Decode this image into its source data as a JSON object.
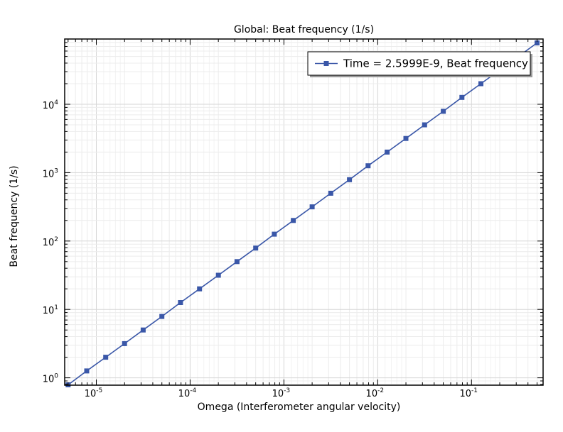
{
  "chart_data": {
    "type": "line",
    "title": "Global: Beat frequency (1/s)",
    "xlabel": "Omega (Interferometer angular velocity)",
    "ylabel": "Beat frequency (1/s)",
    "xscale": "log",
    "yscale": "log",
    "xlim": [
      4.6e-06,
      0.58
    ],
    "ylim": [
      0.78,
      90000
    ],
    "grid": true,
    "legend": "top-right",
    "x_ticks": [
      {
        "base": "10",
        "exp": "-5",
        "value": 1e-05
      },
      {
        "base": "10",
        "exp": "-4",
        "value": 0.0001
      },
      {
        "base": "10",
        "exp": "-3",
        "value": 0.001
      },
      {
        "base": "10",
        "exp": "-2",
        "value": 0.01
      },
      {
        "base": "10",
        "exp": "-1",
        "value": 0.1
      }
    ],
    "y_ticks": [
      {
        "base": "10",
        "exp": "0",
        "value": 1
      },
      {
        "base": "10",
        "exp": "1",
        "value": 10
      },
      {
        "base": "10",
        "exp": "2",
        "value": 100
      },
      {
        "base": "10",
        "exp": "3",
        "value": 1000
      },
      {
        "base": "10",
        "exp": "4",
        "value": 10000
      }
    ],
    "series": [
      {
        "name": "Time = 2.5999E-9, Beat frequency",
        "color": "#3a57a8",
        "marker": "square",
        "x": [
          5e-06,
          7.9e-06,
          1.26e-05,
          2e-05,
          3.16e-05,
          5e-05,
          7.9e-05,
          0.000126,
          0.0002,
          0.000316,
          0.0005,
          0.00079,
          0.00126,
          0.002,
          0.00316,
          0.005,
          0.0079,
          0.0126,
          0.02,
          0.0316,
          0.05,
          0.079,
          0.126,
          0.5
        ],
        "y": [
          0.79,
          1.26,
          2.0,
          3.16,
          5.0,
          7.9,
          12.6,
          20,
          31.6,
          50,
          79,
          126,
          200,
          316,
          500,
          790,
          1260,
          2000,
          3160,
          5000,
          7900,
          12600,
          20000,
          79000
        ]
      }
    ]
  }
}
